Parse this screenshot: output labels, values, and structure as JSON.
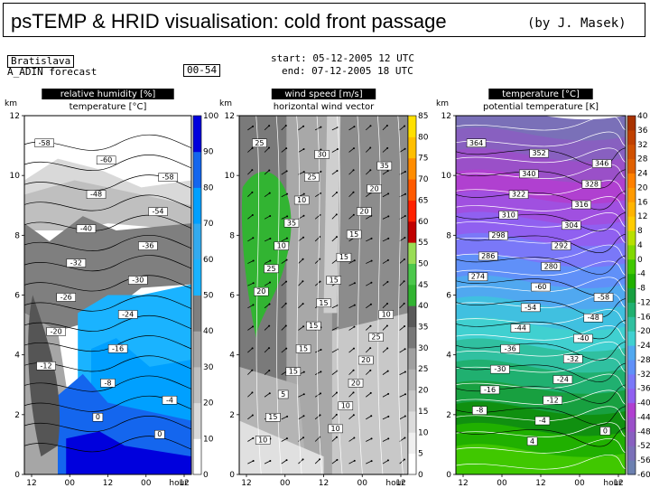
{
  "header": {
    "title": "psTEMP & HRID visualisation: cold front passage",
    "author": "(by J. Masek)"
  },
  "meta": {
    "location": "Bratislava",
    "model": "A_ADIN forecast",
    "range": "00-54",
    "start": "start: 05-12-2005   12 UTC",
    "end": "end: 07-12-2005   18 UTC"
  },
  "colors": {
    "rh": [
      "#ffffff",
      "#d9d9d9",
      "#bfbfbf",
      "#a6a6a6",
      "#7f7f7f",
      "#1ab3ff",
      "#33aaee",
      "#00a0ff",
      "#1466ee",
      "#0000dd"
    ],
    "ws": [
      "#ffffff",
      "#f0f0f0",
      "#dcdcdc",
      "#c8c8c8",
      "#b4b4b4",
      "#a0a0a0",
      "#8c8c8c",
      "#787878",
      "#5a5a5a",
      "#32b432",
      "#4cc84c",
      "#99dd55",
      "#c00000",
      "#e00000",
      "#ff2000",
      "#ff5a00",
      "#ff8c00",
      "#ffbf00",
      "#ffe000",
      "#ffff40"
    ],
    "temp": [
      "#8b2a00",
      "#a83200",
      "#c04000",
      "#d05000",
      "#e06000",
      "#f07000",
      "#ff8000",
      "#ff9a00",
      "#ffb400",
      "#ffcc00",
      "#e8d800",
      "#b8e000",
      "#80d800",
      "#40c800",
      "#20b000",
      "#109010",
      "#18a040",
      "#20b070",
      "#30c0a0",
      "#40d0d0",
      "#40c0e0",
      "#50a8f0",
      "#6090f8",
      "#7a78f8",
      "#9060f0",
      "#a050e0",
      "#b040d0",
      "#9a50c8",
      "#8860c0",
      "#7a70b8",
      "#6c80b0"
    ]
  },
  "chart_data": [
    {
      "type": "heatmap",
      "panel": "left",
      "title": "relative humidity  [%]",
      "subtitle": "temperature  [°C]",
      "ylabel": "km",
      "xlabel": "hour",
      "xticks": [
        "12",
        "00",
        "12",
        "00",
        "12"
      ],
      "yticks": [
        "0",
        "2",
        "4",
        "6",
        "8",
        "10",
        "12"
      ],
      "ylim": [
        0,
        12
      ],
      "colorbar": {
        "ticks": [
          "0",
          "10",
          "20",
          "30",
          "40",
          "50",
          "60",
          "70",
          "80",
          "90",
          "100"
        ],
        "range": [
          0,
          100
        ]
      },
      "contour_labels": [
        "-58",
        "-60",
        "-58",
        "-48",
        "-54",
        "-40",
        "-36",
        "-32",
        "-30",
        "-26",
        "-24",
        "-20",
        "-16",
        "-12",
        "-8",
        "-4",
        "0",
        "0"
      ]
    },
    {
      "type": "heatmap",
      "panel": "middle",
      "title": "wind speed  [m/s]",
      "subtitle": "horizontal wind vector",
      "ylabel": "km",
      "xlabel": "hour",
      "xticks": [
        "12",
        "00",
        "12",
        "00",
        "12"
      ],
      "yticks": [
        "0",
        "2",
        "4",
        "6",
        "8",
        "10",
        "12"
      ],
      "ylim": [
        0,
        12
      ],
      "colorbar": {
        "ticks": [
          "0",
          "5",
          "10",
          "15",
          "20",
          "25",
          "30",
          "35",
          "40",
          "45",
          "50",
          "55",
          "60",
          "65",
          "70",
          "75",
          "80",
          "85"
        ],
        "range": [
          0,
          85
        ]
      },
      "contour_labels": [
        "25",
        "30",
        "35",
        "25",
        "20",
        "10",
        "20",
        "35",
        "15",
        "10",
        "15",
        "25",
        "15",
        "20",
        "15",
        "10",
        "15",
        "25",
        "15",
        "20",
        "15",
        "20",
        "5",
        "10",
        "15",
        "10",
        "10"
      ]
    },
    {
      "type": "heatmap",
      "panel": "right",
      "title": "temperature  [°C]",
      "subtitle": "potential temperature  [K]",
      "ylabel": "km",
      "xlabel": "hour",
      "xticks": [
        "12",
        "00",
        "12",
        "00",
        "12"
      ],
      "yticks": [
        "0",
        "2",
        "4",
        "6",
        "8",
        "10",
        "12"
      ],
      "ylim": [
        0,
        12
      ],
      "colorbar": {
        "ticks": [
          "40",
          "36",
          "32",
          "28",
          "24",
          "20",
          "16",
          "12",
          "8",
          "4",
          "0",
          "-4",
          "-8",
          "-12",
          "-16",
          "-20",
          "-24",
          "-28",
          "-32",
          "-36",
          "-40",
          "-44",
          "-48",
          "-52",
          "-56",
          "-60"
        ],
        "range": [
          -60,
          40
        ]
      },
      "contour_labels": [
        "364",
        "352",
        "346",
        "340",
        "328",
        "322",
        "316",
        "310",
        "304",
        "298",
        "292",
        "286",
        "280",
        "274",
        "-60",
        "-58",
        "-54",
        "-48",
        "-44",
        "-40",
        "-36",
        "-32",
        "-30",
        "-24",
        "-16",
        "-12",
        "-8",
        "-4",
        "0",
        "4"
      ]
    }
  ]
}
